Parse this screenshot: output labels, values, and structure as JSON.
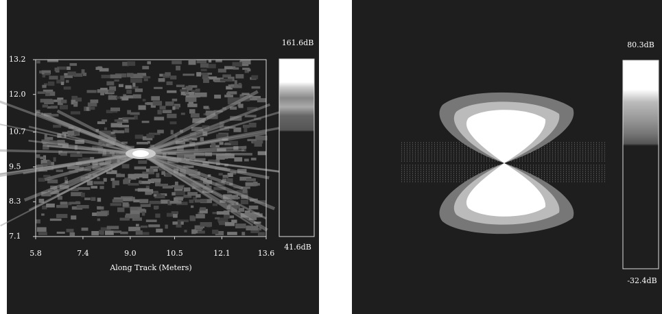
{
  "chart_data": [
    {
      "type": "heatmap",
      "xlabel": "Along Track (Meters)",
      "xlim": [
        5.8,
        13.6
      ],
      "xticks": [
        5.8,
        7.4,
        {
          "value": 9,
          "label": "9.0"
        },
        10.5,
        12.1,
        13.6
      ],
      "ylim": [
        7.1,
        13.2
      ],
      "yticks": [
        7.1,
        8.3,
        9.5,
        10.7,
        {
          "value": 12,
          "label": "12.0"
        },
        13.2
      ],
      "colorbar": [
        {
          "value": 41.6,
          "label": "41.6dB"
        },
        {
          "value": 161.6,
          "label": "161.6dB"
        }
      ]
    },
    {
      "type": "heatmap",
      "colorbar": [
        {
          "value": -32.4,
          "label": "-32.4dB"
        },
        {
          "value": 80.3,
          "label": "80.3dB"
        }
      ]
    }
  ]
}
